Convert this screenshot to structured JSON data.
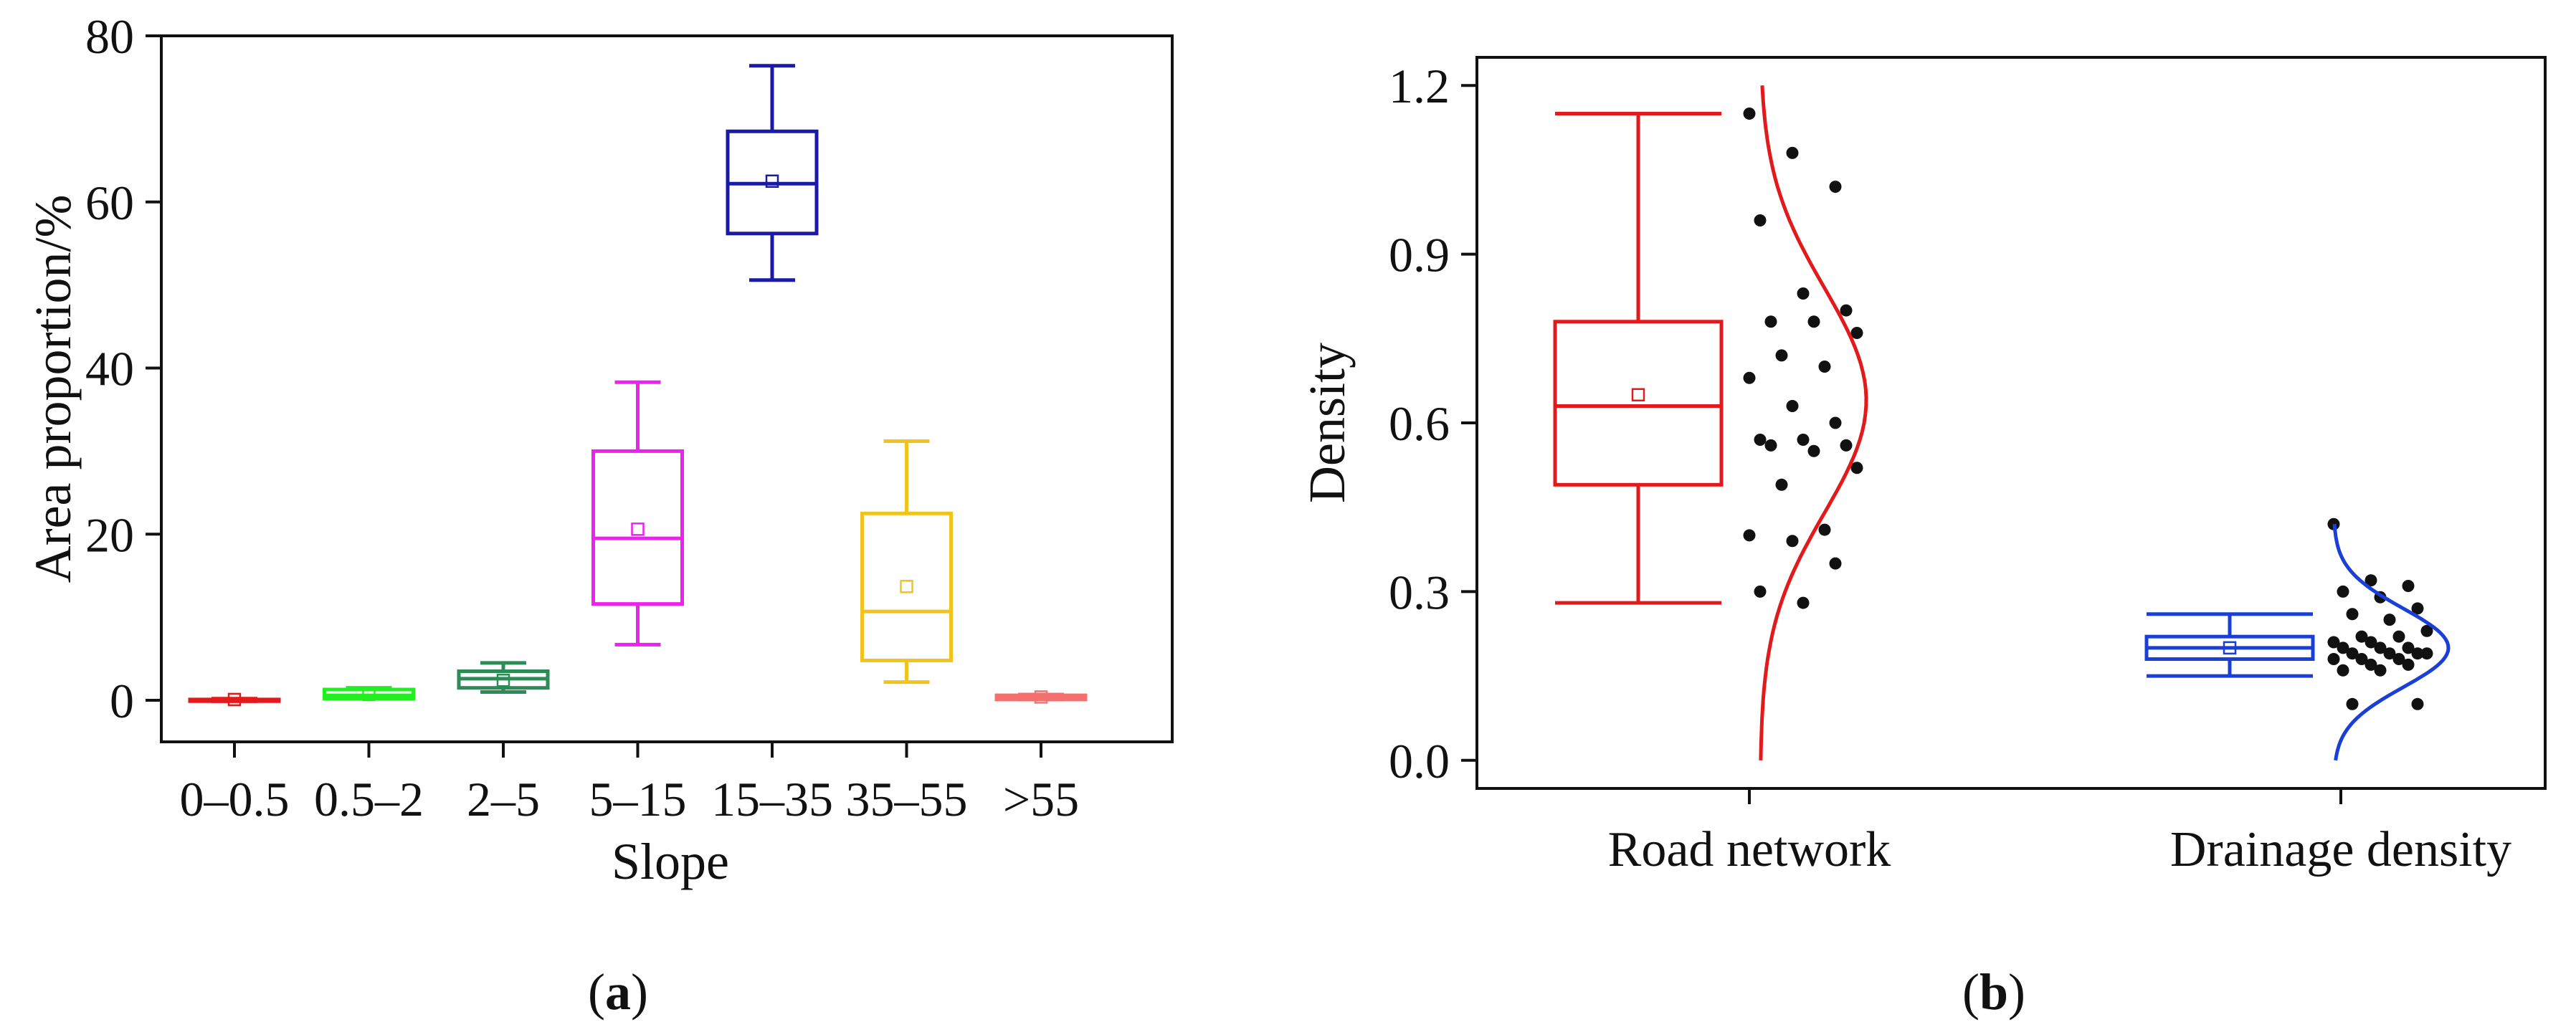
{
  "chart_data": [
    {
      "panel": "a",
      "panel_label": "a",
      "type": "box",
      "xlabel": "Slope",
      "ylabel": "Area proportion/%",
      "ylim": [
        -5,
        80
      ],
      "yticks": [
        0,
        20,
        40,
        60,
        80
      ],
      "grid": false,
      "legend": "none",
      "categories": [
        "0–0.5",
        "0.5–2",
        "2–5",
        "5–15",
        "15–35",
        "35–55",
        ">55"
      ],
      "boxes": [
        {
          "category": "0–0.5",
          "min": -0.1,
          "q1": -0.1,
          "median": 0.0,
          "q3": 0.1,
          "max": 0.2,
          "mean": 0.1,
          "color": "#e31a1c"
        },
        {
          "category": "0.5–2",
          "min": 0.2,
          "q1": 0.2,
          "median": 0.6,
          "q3": 1.3,
          "max": 1.5,
          "mean": 0.7,
          "color": "#22ee22"
        },
        {
          "category": "2–5",
          "min": 1.0,
          "q1": 1.5,
          "median": 2.6,
          "q3": 3.5,
          "max": 4.5,
          "mean": 2.4,
          "color": "#2e8b57"
        },
        {
          "category": "5–15",
          "min": 6.7,
          "q1": 11.6,
          "median": 19.5,
          "q3": 30.0,
          "max": 38.3,
          "mean": 20.6,
          "color": "#ee22ee"
        },
        {
          "category": "15–35",
          "min": 50.6,
          "q1": 56.2,
          "median": 62.2,
          "q3": 68.5,
          "max": 76.4,
          "mean": 62.5,
          "color": "#1a1aa8"
        },
        {
          "category": "35–55",
          "min": 2.2,
          "q1": 4.8,
          "median": 10.7,
          "q3": 22.5,
          "max": 31.2,
          "mean": 13.7,
          "color": "#f2c31d"
        },
        {
          "category": ">55",
          "min": 0.1,
          "q1": 0.1,
          "median": 0.2,
          "q3": 0.6,
          "max": 0.7,
          "mean": 0.4,
          "color": "#f77070"
        }
      ]
    },
    {
      "panel": "b",
      "panel_label": "b",
      "type": "box",
      "xlabel": "",
      "ylabel": "Density",
      "ylim": [
        -0.05,
        1.25
      ],
      "yticks": [
        "0.0",
        "0.3",
        "0.6",
        "0.9",
        "1.2"
      ],
      "grid": false,
      "legend": "none",
      "categories": [
        "Road network",
        "Drainage density"
      ],
      "boxes": [
        {
          "category": "Road network",
          "min": 0.28,
          "q1": 0.49,
          "median": 0.63,
          "q3": 0.78,
          "max": 1.15,
          "mean": 0.65,
          "color": "#e31a1c",
          "points": [
            1.15,
            1.08,
            1.02,
            0.96,
            0.83,
            0.8,
            0.78,
            0.78,
            0.76,
            0.72,
            0.7,
            0.68,
            0.63,
            0.6,
            0.57,
            0.57,
            0.56,
            0.56,
            0.55,
            0.52,
            0.49,
            0.41,
            0.4,
            0.39,
            0.35,
            0.3,
            0.28
          ],
          "distribution": {
            "mean": 0.64,
            "sd": 0.2,
            "range": [
              0.0,
              1.2
            ]
          }
        },
        {
          "category": "Drainage density",
          "min": 0.15,
          "q1": 0.18,
          "median": 0.2,
          "q3": 0.22,
          "max": 0.26,
          "mean": 0.2,
          "color": "#1a3fd6",
          "points": [
            0.42,
            0.32,
            0.31,
            0.3,
            0.29,
            0.27,
            0.26,
            0.25,
            0.23,
            0.22,
            0.22,
            0.21,
            0.21,
            0.2,
            0.2,
            0.2,
            0.19,
            0.19,
            0.19,
            0.19,
            0.18,
            0.18,
            0.18,
            0.17,
            0.17,
            0.16,
            0.16,
            0.1,
            0.1
          ],
          "distribution": {
            "mean": 0.2,
            "sd": 0.07,
            "range": [
              0.0,
              0.42
            ]
          }
        }
      ]
    }
  ]
}
